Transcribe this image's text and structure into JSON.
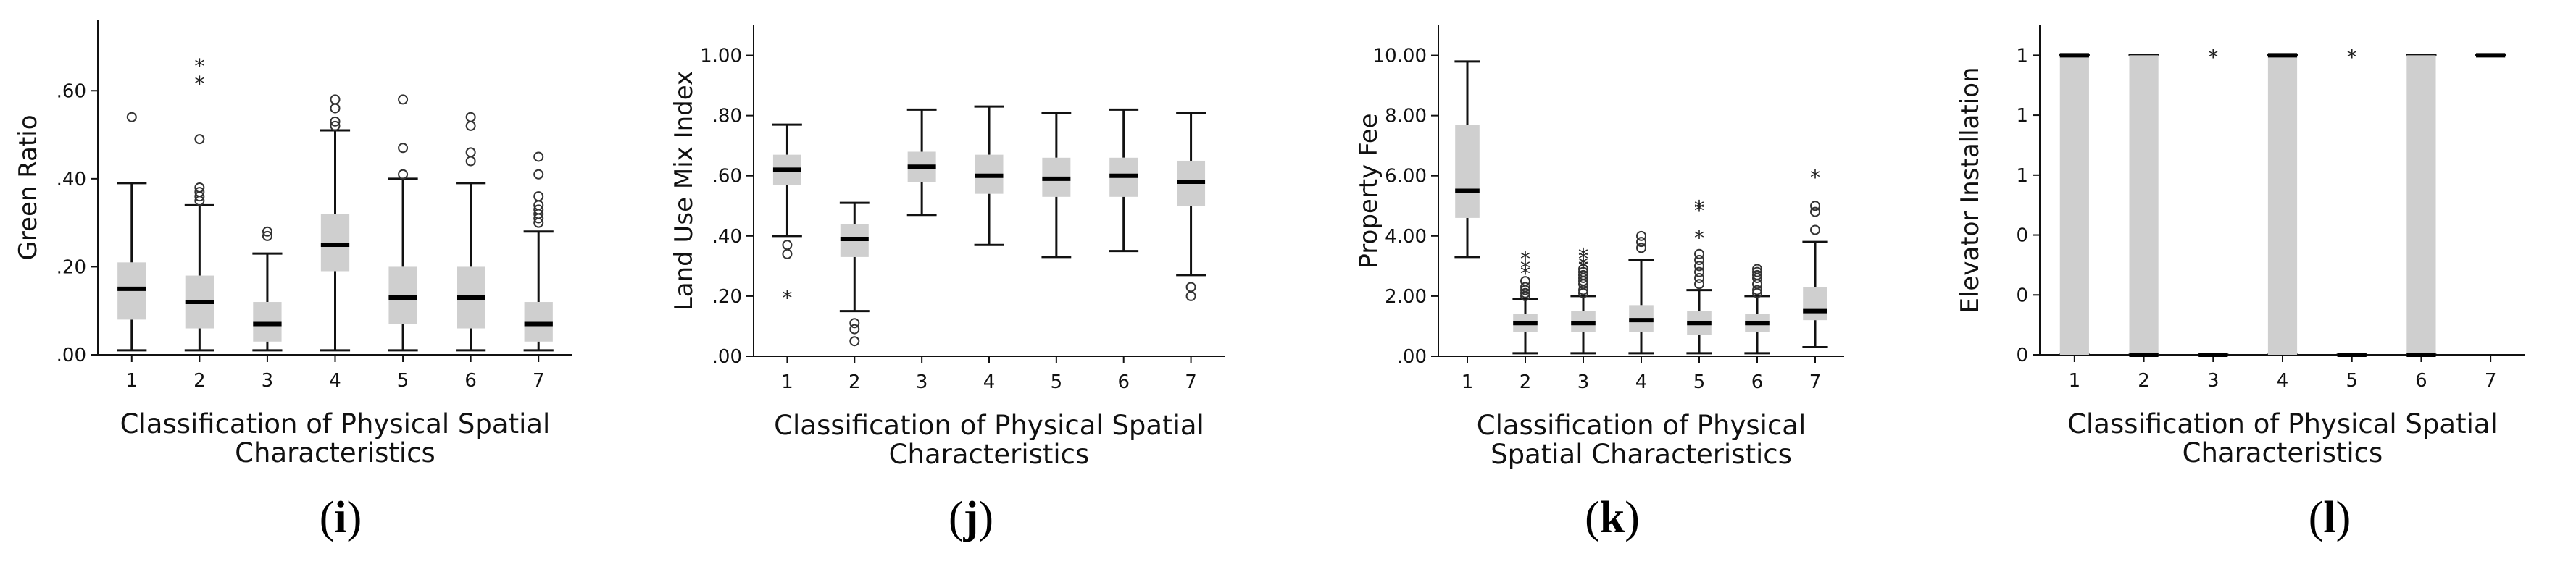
{
  "chart_data": [
    {
      "type": "box",
      "panel_label": "i",
      "ylabel": "Green Ratio",
      "xlabel_lines": [
        "Classification of Physical Spatial",
        "Characteristics"
      ],
      "yticks": [
        ".00",
        ".20",
        ".40",
        ".60"
      ],
      "ylim": [
        0,
        0.76
      ],
      "categories": [
        "1",
        "2",
        "3",
        "4",
        "5",
        "6",
        "7"
      ],
      "boxes": [
        {
          "min": 0.01,
          "q1": 0.08,
          "median": 0.15,
          "q3": 0.21,
          "max": 0.39,
          "outliers_circle": [
            0.54
          ],
          "outliers_star": []
        },
        {
          "min": 0.01,
          "q1": 0.06,
          "median": 0.12,
          "q3": 0.18,
          "max": 0.34,
          "outliers_circle": [
            0.35,
            0.36,
            0.37,
            0.38,
            0.49
          ],
          "outliers_star": [
            0.62,
            0.66
          ]
        },
        {
          "min": 0.01,
          "q1": 0.03,
          "median": 0.07,
          "q3": 0.12,
          "max": 0.23,
          "outliers_circle": [
            0.27,
            0.28
          ],
          "outliers_star": []
        },
        {
          "min": 0.01,
          "q1": 0.19,
          "median": 0.25,
          "q3": 0.32,
          "max": 0.51,
          "outliers_circle": [
            0.52,
            0.53,
            0.56,
            0.58
          ],
          "outliers_star": []
        },
        {
          "min": 0.01,
          "q1": 0.07,
          "median": 0.13,
          "q3": 0.2,
          "max": 0.4,
          "outliers_circle": [
            0.41,
            0.47,
            0.58
          ],
          "outliers_star": []
        },
        {
          "min": 0.01,
          "q1": 0.06,
          "median": 0.13,
          "q3": 0.2,
          "max": 0.39,
          "outliers_circle": [
            0.44,
            0.46,
            0.52,
            0.54
          ],
          "outliers_star": []
        },
        {
          "min": 0.01,
          "q1": 0.03,
          "median": 0.07,
          "q3": 0.12,
          "max": 0.28,
          "outliers_circle": [
            0.3,
            0.31,
            0.32,
            0.33,
            0.34,
            0.36,
            0.41,
            0.45
          ],
          "outliers_star": []
        }
      ]
    },
    {
      "type": "box",
      "panel_label": "j",
      "ylabel": "Land Use Mix Index",
      "xlabel_lines": [
        "Classification of Physical Spatial",
        "Characteristics"
      ],
      "yticks": [
        ".00",
        ".20",
        ".40",
        ".60",
        ".80",
        "1.00"
      ],
      "ylim": [
        0,
        1.1
      ],
      "categories": [
        "1",
        "2",
        "3",
        "4",
        "5",
        "6",
        "7"
      ],
      "boxes": [
        {
          "min": 0.4,
          "q1": 0.57,
          "median": 0.62,
          "q3": 0.67,
          "max": 0.77,
          "outliers_circle": [
            0.34,
            0.37
          ],
          "outliers_star": [
            0.2
          ]
        },
        {
          "min": 0.15,
          "q1": 0.33,
          "median": 0.39,
          "q3": 0.44,
          "max": 0.51,
          "outliers_circle": [
            0.05,
            0.09,
            0.11
          ],
          "outliers_star": []
        },
        {
          "min": 0.47,
          "q1": 0.58,
          "median": 0.63,
          "q3": 0.68,
          "max": 0.82,
          "outliers_circle": [],
          "outliers_star": []
        },
        {
          "min": 0.37,
          "q1": 0.54,
          "median": 0.6,
          "q3": 0.67,
          "max": 0.83,
          "outliers_circle": [],
          "outliers_star": []
        },
        {
          "min": 0.33,
          "q1": 0.53,
          "median": 0.59,
          "q3": 0.66,
          "max": 0.81,
          "outliers_circle": [],
          "outliers_star": []
        },
        {
          "min": 0.35,
          "q1": 0.53,
          "median": 0.6,
          "q3": 0.66,
          "max": 0.82,
          "outliers_circle": [],
          "outliers_star": []
        },
        {
          "min": 0.27,
          "q1": 0.5,
          "median": 0.58,
          "q3": 0.65,
          "max": 0.81,
          "outliers_circle": [
            0.2,
            0.23
          ],
          "outliers_star": []
        }
      ]
    },
    {
      "type": "box",
      "panel_label": "k",
      "ylabel": "Property Fee",
      "xlabel_lines": [
        "Classification of Physical",
        "Spatial Characteristics"
      ],
      "yticks": [
        ".00",
        "2.00",
        "4.00",
        "6.00",
        "8.00",
        "10.00"
      ],
      "ylim": [
        0,
        11
      ],
      "categories": [
        "1",
        "2",
        "3",
        "4",
        "5",
        "6",
        "7"
      ],
      "boxes": [
        {
          "min": 3.3,
          "q1": 4.6,
          "median": 5.5,
          "q3": 7.7,
          "max": 9.8,
          "outliers_circle": [],
          "outliers_star": []
        },
        {
          "min": 0.1,
          "q1": 0.8,
          "median": 1.1,
          "q3": 1.4,
          "max": 1.9,
          "outliers_circle": [
            2.0,
            2.1,
            2.2,
            2.3,
            2.5
          ],
          "outliers_star": [
            2.8,
            3.0,
            3.3
          ]
        },
        {
          "min": 0.1,
          "q1": 0.8,
          "median": 1.1,
          "q3": 1.5,
          "max": 2.0,
          "outliers_circle": [
            2.1,
            2.2,
            2.4,
            2.5,
            2.6,
            2.7,
            2.8,
            2.9
          ],
          "outliers_star": [
            3.0,
            3.1,
            3.3,
            3.4
          ]
        },
        {
          "min": 0.1,
          "q1": 0.8,
          "median": 1.2,
          "q3": 1.7,
          "max": 3.2,
          "outliers_circle": [
            3.6,
            3.8,
            4.0
          ],
          "outliers_star": []
        },
        {
          "min": 0.1,
          "q1": 0.7,
          "median": 1.1,
          "q3": 1.5,
          "max": 2.2,
          "outliers_circle": [
            2.4,
            2.6,
            2.8,
            3.0,
            3.2,
            3.4
          ],
          "outliers_star": [
            4.0,
            4.9,
            5.0
          ]
        },
        {
          "min": 0.1,
          "q1": 0.8,
          "median": 1.1,
          "q3": 1.4,
          "max": 2.0,
          "outliers_circle": [
            2.1,
            2.2,
            2.4,
            2.6,
            2.7,
            2.8,
            2.9
          ],
          "outliers_star": []
        },
        {
          "min": 0.3,
          "q1": 1.2,
          "median": 1.5,
          "q3": 2.3,
          "max": 3.8,
          "outliers_circle": [
            4.2,
            4.8,
            5.0
          ],
          "outliers_star": [
            6.0
          ]
        }
      ]
    },
    {
      "type": "box",
      "panel_label": "l",
      "ylabel": "Elevator Installation",
      "xlabel_lines": [
        "Classification of Physical Spatial",
        "Characteristics"
      ],
      "yticks": [
        "0",
        "0",
        "0",
        "1",
        "1",
        "1"
      ],
      "ylim": [
        0,
        1.1
      ],
      "categories": [
        "1",
        "2",
        "3",
        "4",
        "5",
        "6",
        "7"
      ],
      "boxes": [
        {
          "min": 0,
          "q1": 0,
          "median": 1,
          "q3": 1,
          "max": 1,
          "outliers_circle": [],
          "outliers_star": []
        },
        {
          "min": 0,
          "q1": 0,
          "median": 0,
          "q3": 1,
          "max": 1,
          "outliers_circle": [],
          "outliers_star": []
        },
        {
          "min": 0,
          "q1": 0,
          "median": 0,
          "q3": 0,
          "max": 0,
          "outliers_circle": [],
          "outliers_star": [
            1
          ]
        },
        {
          "min": 0,
          "q1": 0,
          "median": 1,
          "q3": 1,
          "max": 1,
          "outliers_circle": [],
          "outliers_star": []
        },
        {
          "min": 0,
          "q1": 0,
          "median": 0,
          "q3": 0,
          "max": 0,
          "outliers_circle": [],
          "outliers_star": [
            1
          ]
        },
        {
          "min": 0,
          "q1": 0,
          "median": 0,
          "q3": 1,
          "max": 1,
          "outliers_circle": [],
          "outliers_star": []
        },
        {
          "min": 1,
          "q1": 1,
          "median": 1,
          "q3": 1,
          "max": 1,
          "outliers_circle": [],
          "outliers_star": []
        }
      ]
    }
  ],
  "colors": {
    "box_fill": "#cfcfcf",
    "stroke": "#111111",
    "median": "#000000"
  }
}
